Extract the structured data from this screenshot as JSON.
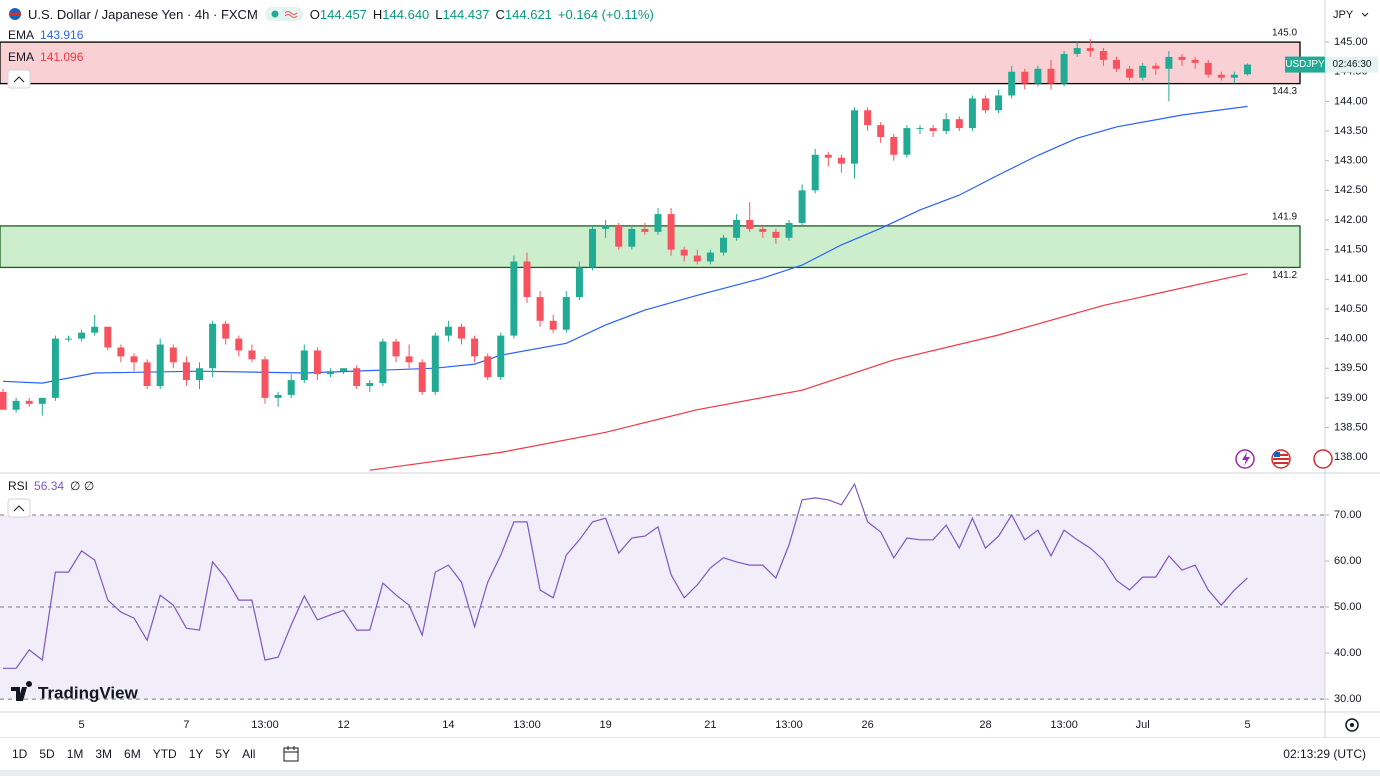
{
  "chart_data": [
    {
      "type": "candlestick",
      "title": "U.S. Dollar / Japanese Yen · 4h · FXCM",
      "symbol": "USDJPY",
      "countdown": "02:46:30",
      "currency": "JPY",
      "ohlc_labels": [
        "O",
        "H",
        "L",
        "C"
      ],
      "ohlc": [
        "144.457",
        "144.640",
        "144.437",
        "144.621"
      ],
      "change": "+0.164 (+0.11%)",
      "up_color": "#22ab94",
      "down_color": "#f7525f",
      "categories": [
        null,
        null,
        null,
        null,
        null,
        null,
        "5",
        null,
        null,
        null,
        null,
        null,
        null,
        null,
        "7",
        null,
        null,
        null,
        null,
        null,
        "13:00",
        null,
        null,
        null,
        null,
        null,
        "12",
        null,
        null,
        null,
        null,
        null,
        null,
        null,
        "14",
        null,
        null,
        null,
        null,
        null,
        "13:00",
        null,
        null,
        null,
        null,
        null,
        "19",
        null,
        null,
        null,
        null,
        null,
        null,
        null,
        "21",
        null,
        null,
        null,
        null,
        null,
        "13:00",
        null,
        null,
        null,
        null,
        null,
        "26",
        null,
        null,
        null,
        null,
        null,
        null,
        null,
        null,
        "28",
        null,
        null,
        null,
        null,
        null,
        "13:00",
        null,
        null,
        null,
        null,
        null,
        "Jul",
        null,
        null,
        null,
        null,
        null,
        null,
        null,
        "5"
      ],
      "open": [
        139.1,
        138.8,
        138.95,
        138.9,
        139.0,
        140.0,
        140.0,
        140.1,
        140.2,
        139.85,
        139.7,
        139.6,
        139.2,
        139.85,
        139.6,
        139.3,
        139.5,
        140.25,
        140.0,
        139.8,
        139.65,
        139.0,
        139.05,
        139.3,
        139.8,
        139.4,
        139.45,
        139.5,
        139.2,
        139.25,
        139.95,
        139.7,
        139.6,
        139.1,
        140.05,
        140.2,
        140.0,
        139.7,
        139.35,
        140.05,
        141.3,
        140.7,
        140.3,
        140.15,
        140.7,
        141.2,
        141.85,
        141.9,
        141.55,
        141.85,
        141.8,
        142.1,
        141.5,
        141.4,
        141.3,
        141.45,
        141.7,
        142.0,
        141.85,
        141.8,
        141.7,
        141.95,
        142.5,
        143.1,
        143.05,
        142.95,
        143.85,
        143.6,
        143.4,
        143.1,
        143.55,
        143.55,
        143.5,
        143.7,
        143.55,
        144.05,
        143.85,
        144.1,
        144.5,
        144.3,
        144.55,
        144.3,
        144.8,
        144.9,
        144.85,
        144.7,
        144.55,
        144.4,
        144.6,
        144.55,
        144.75,
        144.7,
        144.65,
        144.45,
        144.4,
        144.457
      ],
      "high": [
        139.15,
        139.0,
        139.0,
        139.0,
        140.05,
        140.05,
        140.15,
        140.4,
        140.2,
        139.9,
        139.75,
        139.65,
        140.0,
        139.9,
        139.7,
        139.6,
        140.3,
        140.3,
        140.05,
        139.9,
        139.7,
        139.1,
        139.4,
        139.9,
        139.85,
        139.5,
        139.5,
        139.55,
        139.3,
        140.0,
        140.0,
        139.9,
        139.65,
        140.1,
        140.3,
        140.25,
        140.05,
        139.75,
        140.1,
        141.4,
        141.45,
        140.8,
        140.4,
        140.8,
        141.3,
        141.9,
        142.0,
        141.95,
        141.9,
        141.95,
        142.2,
        142.2,
        141.55,
        141.5,
        141.5,
        141.75,
        142.1,
        142.3,
        141.9,
        141.85,
        142.0,
        142.6,
        143.2,
        143.15,
        143.1,
        143.9,
        143.9,
        143.65,
        143.45,
        143.6,
        143.6,
        143.6,
        143.8,
        143.75,
        144.1,
        144.1,
        144.2,
        144.6,
        144.55,
        144.6,
        144.7,
        144.85,
        145.0,
        145.05,
        144.9,
        144.75,
        144.6,
        144.65,
        144.65,
        144.85,
        144.8,
        144.75,
        144.7,
        144.5,
        144.5,
        144.64
      ],
      "low": [
        138.8,
        138.75,
        138.85,
        138.7,
        138.95,
        139.95,
        139.95,
        140.05,
        139.8,
        139.6,
        139.45,
        139.15,
        139.15,
        139.5,
        139.2,
        139.15,
        139.35,
        139.9,
        139.7,
        139.6,
        138.9,
        138.85,
        139.0,
        139.25,
        139.3,
        139.35,
        139.4,
        139.15,
        139.1,
        139.2,
        139.6,
        139.5,
        139.05,
        139.05,
        139.95,
        139.9,
        139.6,
        139.3,
        139.3,
        140.0,
        140.6,
        140.2,
        140.1,
        140.1,
        140.65,
        141.15,
        141.7,
        141.5,
        141.5,
        141.75,
        141.75,
        141.4,
        141.3,
        141.25,
        141.25,
        141.4,
        141.65,
        141.8,
        141.7,
        141.6,
        141.65,
        141.9,
        142.45,
        142.9,
        142.8,
        142.7,
        143.5,
        143.3,
        143.0,
        143.05,
        143.45,
        143.4,
        143.45,
        143.5,
        143.5,
        143.8,
        143.8,
        144.05,
        144.2,
        144.25,
        144.2,
        144.25,
        144.75,
        144.75,
        144.6,
        144.5,
        144.35,
        144.35,
        144.45,
        144.0,
        144.6,
        144.55,
        144.4,
        144.35,
        144.3,
        144.437
      ],
      "close": [
        138.8,
        138.95,
        138.9,
        139.0,
        140.0,
        140.0,
        140.1,
        140.2,
        139.85,
        139.7,
        139.6,
        139.2,
        139.9,
        139.6,
        139.3,
        139.5,
        140.25,
        140.0,
        139.8,
        139.65,
        139.0,
        139.05,
        139.3,
        139.8,
        139.4,
        139.45,
        139.5,
        139.2,
        139.25,
        139.95,
        139.7,
        139.6,
        139.1,
        140.05,
        140.2,
        140.0,
        139.7,
        139.35,
        140.05,
        141.3,
        140.7,
        140.3,
        140.15,
        140.7,
        141.2,
        141.85,
        141.9,
        141.55,
        141.85,
        141.8,
        142.1,
        141.5,
        141.4,
        141.3,
        141.45,
        141.7,
        142.0,
        141.85,
        141.8,
        141.7,
        141.95,
        142.5,
        143.1,
        143.05,
        142.95,
        143.85,
        143.6,
        143.4,
        143.1,
        143.55,
        143.55,
        143.5,
        143.7,
        143.55,
        144.05,
        143.85,
        144.1,
        144.5,
        144.3,
        144.55,
        144.3,
        144.8,
        144.9,
        144.85,
        144.7,
        144.55,
        144.4,
        144.6,
        144.55,
        144.75,
        144.7,
        144.65,
        144.45,
        144.4,
        144.45,
        144.621
      ],
      "overlays": [
        {
          "name": "EMA",
          "color": "#2962ff",
          "x": [
            0,
            3,
            7,
            15,
            23,
            33,
            36,
            38,
            43,
            46,
            49,
            53,
            58,
            61,
            64,
            67,
            70,
            73,
            76,
            79,
            82,
            85,
            90,
            95
          ],
          "values": [
            139.28,
            139.25,
            139.42,
            139.45,
            139.42,
            139.5,
            139.57,
            139.72,
            139.92,
            140.23,
            140.48,
            140.73,
            141.02,
            141.24,
            141.58,
            141.86,
            142.17,
            142.42,
            142.76,
            143.09,
            143.38,
            143.57,
            143.77,
            143.916
          ]
        },
        {
          "name": "EMA",
          "color": "#f23645",
          "x": [
            28,
            38,
            46,
            53,
            61,
            68,
            76,
            84,
            95
          ],
          "values": [
            137.78,
            138.08,
            138.42,
            138.8,
            139.13,
            139.64,
            140.06,
            140.56,
            141.096
          ]
        }
      ],
      "zones": [
        {
          "top": {
            "value": 145,
            "label": "145.0"
          },
          "bottom": 144.3,
          "fill": "#f9d0d3",
          "stroke": "#000000"
        },
        {
          "top": 141.9,
          "bottom": 141.2,
          "fill": "#cdeecd",
          "stroke": "#1b5e20"
        }
      ],
      "ylim": [
        137.75,
        145.71
      ],
      "yticks": [
        {
          "value": 138,
          "label": "138.00"
        },
        {
          "value": 138.5,
          "label": "138.50"
        },
        {
          "value": 139,
          "label": "139.00"
        },
        {
          "value": 139.5,
          "label": "139.50"
        },
        {
          "value": 140,
          "label": "140.00"
        },
        {
          "value": 140.5,
          "label": "140.50"
        },
        {
          "value": 141,
          "label": "141.00"
        },
        {
          "value": 141.5,
          "label": "141.50"
        },
        {
          "value": 142,
          "label": "142.00"
        },
        {
          "value": 142.5,
          "label": "142.50"
        },
        {
          "value": 143,
          "label": "143.00"
        },
        {
          "value": 143.5,
          "label": "143.50"
        },
        {
          "value": 144,
          "label": "144.00"
        },
        {
          "value": 144.5,
          "label": "144.50"
        },
        {
          "value": 145,
          "label": "145.00"
        }
      ],
      "grid": false
    },
    {
      "type": "line",
      "name": "RSI",
      "inputs": "∅ ∅",
      "color": "#7e57c2",
      "values": [
        36.7,
        36.7,
        40.7,
        38.5,
        57.6,
        57.6,
        62.2,
        60.2,
        51.5,
        48.9,
        47.6,
        42.8,
        52.6,
        50.4,
        45.4,
        45.0,
        59.8,
        56.3,
        51.5,
        51.5,
        38.5,
        39.1,
        46.1,
        52.4,
        47.2,
        48.3,
        49.3,
        45.0,
        45.0,
        55.2,
        52.6,
        50.4,
        43.9,
        57.6,
        59.1,
        55.4,
        45.7,
        55.4,
        61.3,
        68.5,
        68.5,
        53.7,
        52.0,
        61.3,
        64.6,
        68.5,
        69.3,
        61.7,
        65.0,
        65.4,
        67.4,
        57.0,
        52.0,
        54.8,
        58.5,
        60.7,
        59.8,
        59.1,
        59.1,
        56.3,
        63.5,
        73.3,
        73.7,
        73.3,
        72.2,
        76.7,
        68.5,
        66.3,
        60.7,
        65.0,
        64.6,
        64.6,
        67.8,
        62.8,
        69.3,
        62.8,
        65.4,
        70.0,
        64.6,
        66.7,
        61.1,
        66.7,
        64.6,
        62.8,
        60.2,
        55.8,
        53.7,
        56.5,
        56.5,
        61.1,
        58.0,
        59.1,
        53.7,
        50.4,
        53.7,
        56.34
      ],
      "band": [
        30,
        70
      ],
      "midline": 50,
      "ylim": [
        27.2,
        78.9
      ],
      "yticks": [
        {
          "value": 30,
          "label": "30.00"
        },
        {
          "value": 40,
          "label": "40.00"
        },
        {
          "value": 50,
          "label": "50.00"
        },
        {
          "value": 60,
          "label": "60.00"
        },
        {
          "value": 70,
          "label": "70.00"
        }
      ]
    }
  ],
  "brand": "TradingView",
  "toolbar": {
    "timeframes": [
      "1D",
      "5D",
      "1M",
      "3M",
      "6M",
      "YTD",
      "1Y",
      "5Y",
      "All"
    ],
    "clock": "02:13:29 (UTC)"
  }
}
